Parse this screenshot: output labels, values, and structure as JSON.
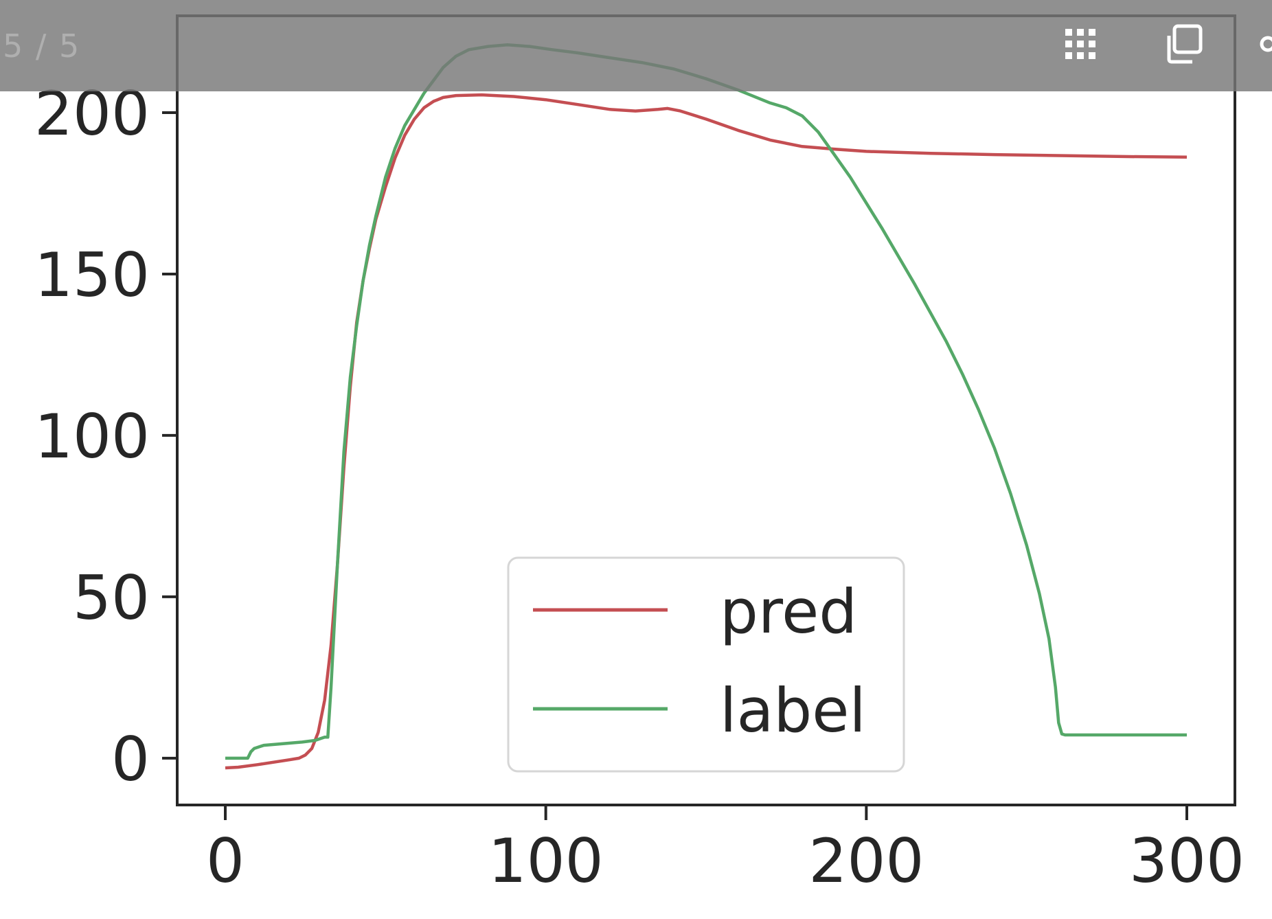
{
  "viewer": {
    "page_counter": "5 / 5",
    "grid_icon": "grid-view-icon",
    "copy_icon": "copy-icon"
  },
  "chart_data": {
    "type": "line",
    "xlim": [
      -15,
      315
    ],
    "ylim": [
      -14.5,
      230
    ],
    "x_ticks": [
      0,
      100,
      200,
      300
    ],
    "y_ticks": [
      0,
      50,
      100,
      150,
      200
    ],
    "grid": false,
    "legend": {
      "position": "lower-center",
      "entries": [
        "pred",
        "label"
      ]
    },
    "series": [
      {
        "name": "pred",
        "color": "#c44e52",
        "points": [
          [
            0,
            -3
          ],
          [
            4,
            -2.8
          ],
          [
            10,
            -2
          ],
          [
            20,
            -0.5
          ],
          [
            23,
            0
          ],
          [
            25,
            1
          ],
          [
            27,
            3
          ],
          [
            29,
            8
          ],
          [
            31,
            18
          ],
          [
            33,
            35
          ],
          [
            35,
            60
          ],
          [
            37,
            90
          ],
          [
            39,
            115
          ],
          [
            41,
            135
          ],
          [
            43,
            148
          ],
          [
            45,
            158
          ],
          [
            47,
            167
          ],
          [
            50,
            177
          ],
          [
            53,
            186
          ],
          [
            56,
            193
          ],
          [
            59,
            198
          ],
          [
            62,
            201.5
          ],
          [
            65,
            203.5
          ],
          [
            68,
            204.7
          ],
          [
            72,
            205.3
          ],
          [
            80,
            205.5
          ],
          [
            90,
            205
          ],
          [
            100,
            204
          ],
          [
            110,
            202.5
          ],
          [
            120,
            201
          ],
          [
            128,
            200.5
          ],
          [
            135,
            201
          ],
          [
            138,
            201.3
          ],
          [
            142,
            200.5
          ],
          [
            150,
            198
          ],
          [
            160,
            194.5
          ],
          [
            170,
            191.5
          ],
          [
            180,
            189.5
          ],
          [
            190,
            188.7
          ],
          [
            200,
            188
          ],
          [
            220,
            187.4
          ],
          [
            240,
            187
          ],
          [
            260,
            186.7
          ],
          [
            280,
            186.4
          ],
          [
            300,
            186.2
          ]
        ]
      },
      {
        "name": "label",
        "color": "#55a868",
        "points": [
          [
            0,
            0
          ],
          [
            7,
            0
          ],
          [
            8,
            2
          ],
          [
            9,
            3
          ],
          [
            12,
            4
          ],
          [
            18,
            4.5
          ],
          [
            24,
            5
          ],
          [
            28,
            5.5
          ],
          [
            31,
            6.5
          ],
          [
            32,
            6.5
          ],
          [
            33,
            22
          ],
          [
            35,
            60
          ],
          [
            37,
            95
          ],
          [
            39,
            118
          ],
          [
            41,
            134
          ],
          [
            43,
            148
          ],
          [
            45,
            159
          ],
          [
            47,
            168
          ],
          [
            50,
            180
          ],
          [
            53,
            189
          ],
          [
            56,
            196
          ],
          [
            59,
            201
          ],
          [
            62,
            206
          ],
          [
            65,
            210
          ],
          [
            68,
            214
          ],
          [
            72,
            217.5
          ],
          [
            76,
            219.5
          ],
          [
            82,
            220.5
          ],
          [
            88,
            221
          ],
          [
            95,
            220.5
          ],
          [
            102,
            219.5
          ],
          [
            110,
            218.5
          ],
          [
            120,
            217
          ],
          [
            130,
            215.5
          ],
          [
            140,
            213.5
          ],
          [
            150,
            210.5
          ],
          [
            160,
            207
          ],
          [
            170,
            203
          ],
          [
            175,
            201.5
          ],
          [
            180,
            199
          ],
          [
            185,
            194
          ],
          [
            190,
            187
          ],
          [
            195,
            180
          ],
          [
            200,
            172
          ],
          [
            205,
            164
          ],
          [
            210,
            155.5
          ],
          [
            215,
            147
          ],
          [
            220,
            138
          ],
          [
            225,
            129
          ],
          [
            230,
            119
          ],
          [
            235,
            108
          ],
          [
            240,
            96
          ],
          [
            245,
            82
          ],
          [
            250,
            66
          ],
          [
            254,
            51
          ],
          [
            257,
            37
          ],
          [
            259,
            22
          ],
          [
            260,
            11
          ],
          [
            261,
            7.5
          ],
          [
            262,
            7.2
          ],
          [
            300,
            7.2
          ]
        ]
      }
    ]
  }
}
